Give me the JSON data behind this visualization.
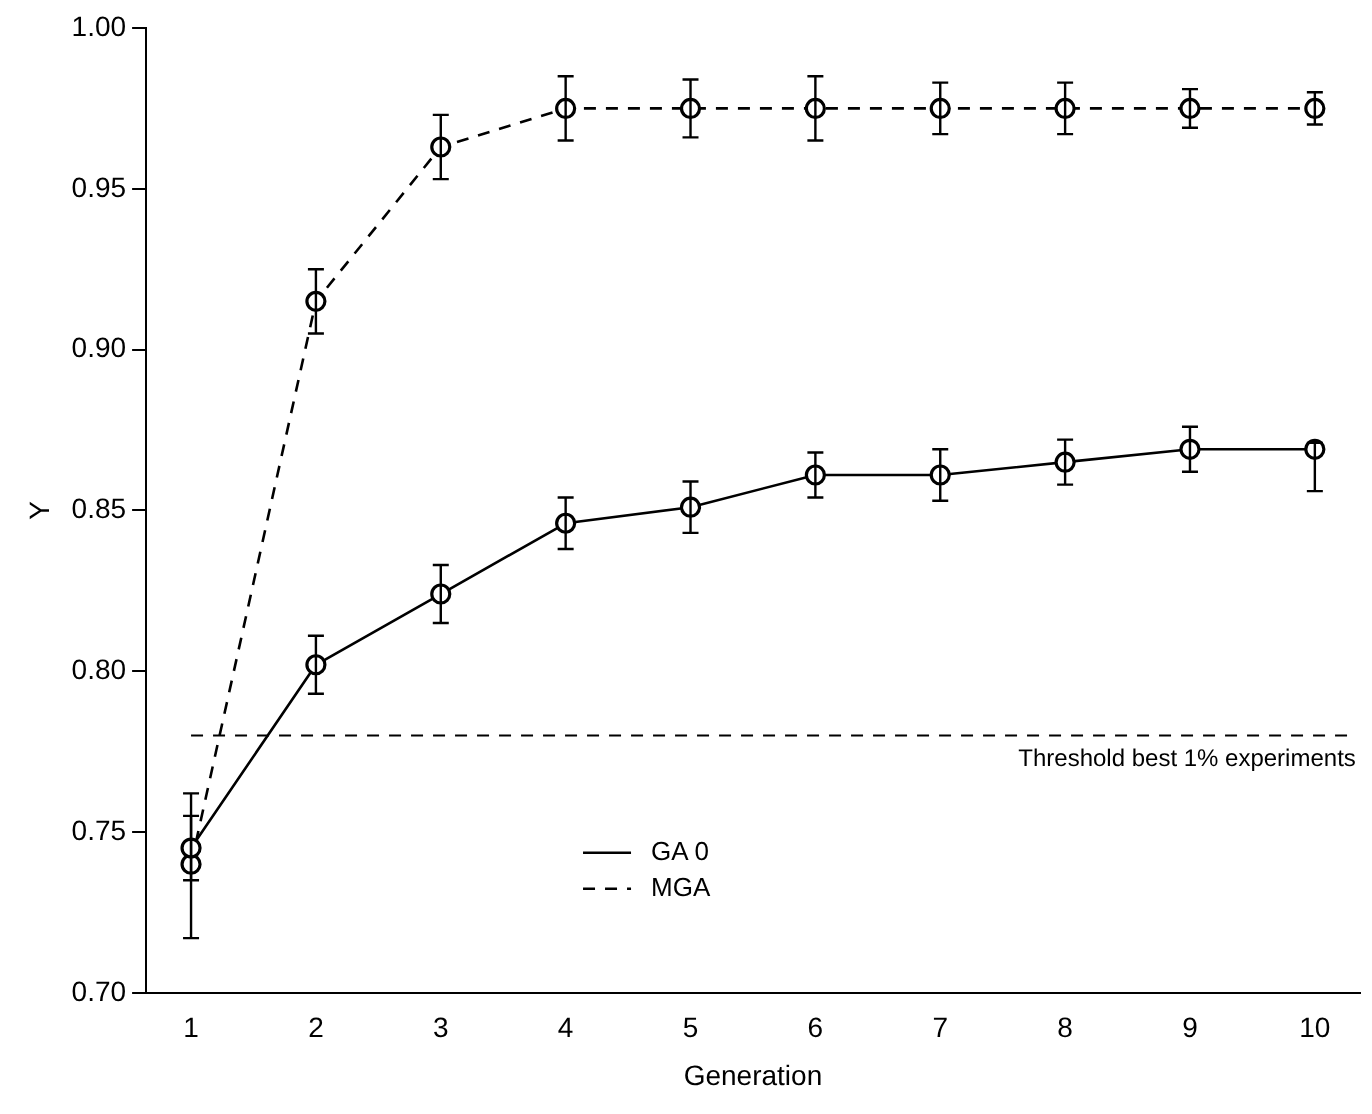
{
  "chart_data": {
    "type": "line",
    "xlabel": "Generation",
    "ylabel": "Y",
    "x": [
      1,
      2,
      3,
      4,
      5,
      6,
      7,
      8,
      9,
      10
    ],
    "series": [
      {
        "name": "GA 0",
        "color": "#000000",
        "line_style": "solid",
        "values": [
          0.745,
          0.802,
          0.824,
          0.846,
          0.851,
          0.861,
          0.861,
          0.865,
          0.869,
          0.869
        ],
        "errors": [
          0.01,
          0.009,
          0.009,
          0.008,
          0.008,
          0.007,
          0.008,
          0.007,
          0.007,
          [
            0.856,
            0.871
          ]
        ]
      },
      {
        "name": "MGA",
        "color": "#000000",
        "line_style": "dashed",
        "values": [
          0.74,
          0.915,
          0.963,
          0.975,
          0.975,
          0.975,
          0.975,
          0.975,
          0.975,
          0.975
        ],
        "errors": [
          [
            0.717,
            0.762
          ],
          0.01,
          0.01,
          0.01,
          0.009,
          0.01,
          0.008,
          0.008,
          0.006,
          0.005
        ]
      }
    ],
    "marker": "circle",
    "legend": "bottom",
    "grid": false,
    "xlim": [
      0.64,
      10.36
    ],
    "xticks": [
      1,
      2,
      3,
      4,
      5,
      6,
      7,
      8,
      9,
      10
    ],
    "ylim": [
      0.7,
      1.0
    ],
    "yticks": [
      {
        "value": 0.7,
        "label": "0.70"
      },
      {
        "value": 0.75,
        "label": "0.75"
      },
      {
        "value": 0.8,
        "label": "0.80"
      },
      {
        "value": 0.85,
        "label": "0.85"
      },
      {
        "value": 0.9,
        "label": "0.90"
      },
      {
        "value": 0.95,
        "label": "0.95"
      },
      {
        "value": 1.0,
        "label": "1.00"
      }
    ],
    "ref_lines": [
      {
        "axis": "y",
        "value": 0.78,
        "label": "Threshold best 1% experiments",
        "line_style": "dashed",
        "color": "#000000"
      }
    ]
  }
}
